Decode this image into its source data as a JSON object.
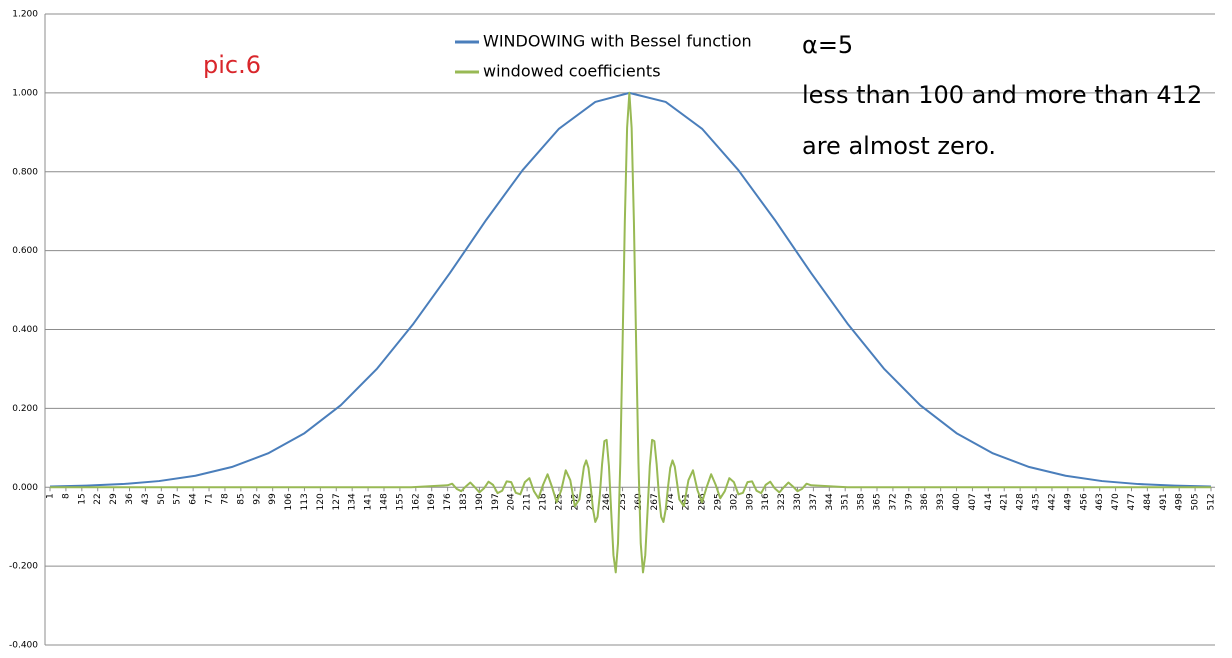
{
  "chart_data": {
    "type": "line",
    "annotations": [
      "pic.6",
      "α=5",
      "less than 100 and more than 412",
      "are almost zero."
    ],
    "legend": "top",
    "grid": true,
    "xlim": [
      1,
      512
    ],
    "ylim": [
      -0.4,
      1.2
    ],
    "yticks": [
      {
        "value": -0.4,
        "label": "-0.400"
      },
      {
        "value": -0.2,
        "label": "-0.200"
      },
      {
        "value": 0,
        "label": "0.000"
      },
      {
        "value": 0.2,
        "label": "0.200"
      },
      {
        "value": 0.4,
        "label": "0.400"
      },
      {
        "value": 0.6,
        "label": "0.600"
      },
      {
        "value": 0.8,
        "label": "0.800"
      },
      {
        "value": 1.0,
        "label": "1.000"
      },
      {
        "value": 1.2,
        "label": "1.200"
      }
    ],
    "xticks": [
      1,
      8,
      15,
      22,
      29,
      36,
      43,
      50,
      57,
      64,
      71,
      78,
      85,
      92,
      99,
      106,
      113,
      120,
      127,
      134,
      141,
      148,
      155,
      162,
      169,
      176,
      183,
      190,
      197,
      204,
      211,
      218,
      225,
      232,
      239,
      246,
      253,
      260,
      267,
      274,
      281,
      288,
      295,
      302,
      309,
      316,
      323,
      330,
      337,
      344,
      351,
      358,
      365,
      372,
      379,
      386,
      393,
      400,
      407,
      414,
      421,
      428,
      435,
      442,
      449,
      456,
      463,
      470,
      477,
      484,
      491,
      498,
      505,
      512
    ],
    "series": [
      {
        "name": "WINDOWING with Bessel function",
        "color": "#4a7ebb",
        "x": [
          1,
          17,
          33,
          49,
          65,
          81,
          97,
          113,
          129,
          145,
          161,
          177,
          193,
          209,
          225,
          241,
          256,
          272,
          288,
          304,
          320,
          336,
          352,
          368,
          384,
          400,
          416,
          432,
          448,
          464,
          480,
          496,
          512
        ],
        "values": [
          0.0018,
          0.004,
          0.0081,
          0.0157,
          0.0291,
          0.0513,
          0.086,
          0.137,
          0.208,
          0.301,
          0.415,
          0.543,
          0.678,
          0.804,
          0.909,
          0.977,
          1.0,
          0.977,
          0.909,
          0.804,
          0.678,
          0.543,
          0.415,
          0.301,
          0.208,
          0.137,
          0.086,
          0.0513,
          0.0291,
          0.0157,
          0.0081,
          0.004,
          0.0018
        ]
      },
      {
        "name": "windowed coefficients",
        "color": "#98b954",
        "x": [
          1,
          60,
          120,
          160,
          176,
          178,
          180,
          182,
          184,
          186,
          188,
          190,
          192,
          194,
          196,
          198,
          200,
          202,
          204,
          206,
          208,
          210,
          212,
          214,
          216,
          218,
          220,
          222,
          224,
          226,
          228,
          230,
          232,
          234,
          236,
          237,
          238,
          239,
          240,
          241,
          242,
          243,
          244,
          245,
          246,
          247,
          248,
          249,
          250,
          251,
          252,
          253,
          254,
          255,
          256,
          257,
          258,
          259,
          260,
          261,
          262,
          263,
          264,
          265,
          266,
          267,
          268,
          269,
          270,
          271,
          272,
          273,
          274,
          275,
          276,
          278,
          280,
          282,
          284,
          286,
          288,
          290,
          292,
          294,
          296,
          298,
          300,
          302,
          304,
          306,
          308,
          310,
          312,
          314,
          316,
          318,
          320,
          322,
          324,
          326,
          328,
          330,
          332,
          334,
          336,
          352,
          400,
          460,
          512
        ],
        "values": [
          0,
          0,
          0,
          0,
          0.005,
          0.009,
          -0.004,
          -0.01,
          0.002,
          0.012,
          0,
          -0.013,
          -0.003,
          0.014,
          0.006,
          -0.015,
          -0.009,
          0.015,
          0.013,
          -0.014,
          -0.018,
          0.013,
          0.023,
          -0.01,
          -0.028,
          0.006,
          0.033,
          0,
          -0.038,
          -0.008,
          0.043,
          0.018,
          -0.048,
          -0.031,
          0.052,
          0.068,
          0.049,
          0,
          -0.056,
          -0.088,
          -0.075,
          -0.019,
          0.059,
          0.117,
          0.12,
          0.054,
          -0.061,
          -0.172,
          -0.216,
          -0.142,
          0.062,
          0.359,
          0.673,
          0.911,
          1.0,
          0.911,
          0.673,
          0.359,
          0.062,
          -0.142,
          -0.216,
          -0.172,
          -0.061,
          0.054,
          0.12,
          0.117,
          0.059,
          -0.019,
          -0.075,
          -0.088,
          -0.056,
          0,
          0.049,
          0.068,
          0.052,
          -0.031,
          -0.048,
          0.018,
          0.043,
          -0.008,
          -0.038,
          0,
          0.033,
          0.006,
          -0.028,
          -0.01,
          0.023,
          0.013,
          -0.018,
          -0.014,
          0.013,
          0.015,
          -0.009,
          -0.015,
          0.006,
          0.014,
          -0.003,
          -0.013,
          0,
          0.012,
          0.002,
          -0.01,
          -0.004,
          0.009,
          0.005,
          0,
          0,
          0,
          0
        ]
      }
    ]
  }
}
